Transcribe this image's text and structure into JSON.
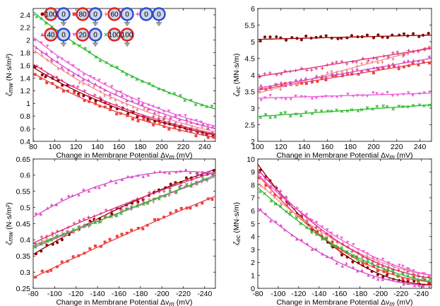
{
  "colors": {
    "c100": "#8b0000",
    "c80": "#ee4040",
    "c60": "#f39090",
    "c0": "#dd2a78",
    "c40": "#d94cc6",
    "c20": "#ef60d8",
    "c100b": "#2eb82e"
  },
  "legend": [
    {
      "key": "c100",
      "marker": "circle",
      "left": "100",
      "right": "0"
    },
    {
      "key": "c80",
      "marker": "square",
      "left": "80",
      "right": "0"
    },
    {
      "key": "c60",
      "marker": "diamond",
      "left": "60",
      "right": "0"
    },
    {
      "key": "c0",
      "marker": "plus",
      "left": "0",
      "right": "0"
    },
    {
      "key": "c40",
      "marker": "triangle-up",
      "left": "40",
      "right": "0"
    },
    {
      "key": "c20",
      "marker": "triangle-down",
      "left": "20",
      "right": "0"
    },
    {
      "key": "c100b",
      "marker": "x",
      "left": "100",
      "right": "100"
    }
  ],
  "chart_data": [
    {
      "id": "tl",
      "type": "scatter",
      "title": "",
      "ylabel_main": "ζ",
      "ylabel_sub": "mw",
      "ylabel_unit": "(N·s/m²)",
      "xlabel": "Change in Membrane Potential Δv",
      "xlabel_sub": "m",
      "xlabel_unit": "(mV)",
      "xlim": [
        80,
        250
      ],
      "ylim": [
        0.4,
        2.5
      ],
      "xticks": [
        80,
        100,
        120,
        140,
        160,
        180,
        200,
        220,
        240
      ],
      "xtick_labels": [
        "80",
        "100",
        "120",
        "140",
        "160",
        "180",
        "200",
        "220",
        "240"
      ],
      "yticks": [
        0.4,
        0.6,
        0.8,
        1.0,
        1.2,
        1.4,
        1.6,
        1.8,
        2.0,
        2.2,
        2.4
      ],
      "ytick_labels": [
        "0.4",
        "0.6",
        "0.8",
        "1",
        "1.2",
        "1.4",
        "1.6",
        "1.8",
        "2",
        "2.2",
        "2.4"
      ],
      "has_legend": true,
      "series": [
        {
          "key": "c100",
          "marker": "circle",
          "fit": {
            "type": "exp",
            "x0": 80,
            "x1": 250,
            "y0": 1.57,
            "y1": 0.5
          }
        },
        {
          "key": "c80",
          "marker": "square",
          "fit": {
            "type": "exp",
            "x0": 80,
            "x1": 250,
            "y0": 1.48,
            "y1": 0.46
          }
        },
        {
          "key": "c60",
          "marker": "diamond",
          "fit": {
            "type": "exp",
            "x0": 80,
            "x1": 250,
            "y0": 1.85,
            "y1": 0.55
          }
        },
        {
          "key": "c0",
          "marker": "plus",
          "fit": {
            "type": "exp",
            "x0": 80,
            "x1": 250,
            "y0": 1.62,
            "y1": 0.52
          }
        },
        {
          "key": "c40",
          "marker": "triangle-up",
          "fit": {
            "type": "exp",
            "x0": 80,
            "x1": 250,
            "y0": 1.92,
            "y1": 0.6
          }
        },
        {
          "key": "c20",
          "marker": "triangle-down",
          "fit": {
            "type": "exp",
            "x0": 80,
            "x1": 250,
            "y0": 2.05,
            "y1": 0.64
          }
        },
        {
          "key": "c100b",
          "marker": "x",
          "fit": {
            "type": "exp",
            "x0": 80,
            "x1": 250,
            "y0": 2.45,
            "y1": 0.91
          }
        }
      ]
    },
    {
      "id": "tr",
      "type": "scatter",
      "title": "",
      "ylabel_main": "ζ",
      "ylabel_sub": "ec",
      "ylabel_unit": "(MN·s/m)",
      "xlabel": "Change in Membrane Potential Δv",
      "xlabel_sub": "m",
      "xlabel_unit": "(mV)",
      "xlim": [
        100,
        250
      ],
      "ylim": [
        2.0,
        6.0
      ],
      "xticks": [
        100,
        120,
        140,
        160,
        180,
        200,
        220,
        240
      ],
      "xtick_labels": [
        "100",
        "120",
        "140",
        "160",
        "180",
        "200",
        "220",
        "240"
      ],
      "yticks": [
        2.0,
        2.5,
        3.0,
        3.5,
        4.0,
        4.5,
        5.0,
        5.5,
        6.0
      ],
      "ytick_labels": [
        "2",
        "2.5",
        "3",
        "3.5",
        "4",
        "4.5",
        "5",
        "5.5",
        "6"
      ],
      "has_legend": false,
      "series": [
        {
          "key": "c100",
          "marker": "circle",
          "fit": {
            "type": "lin",
            "x0": 100,
            "x1": 250,
            "y0": 5.07,
            "y1": 5.2
          }
        },
        {
          "key": "c80",
          "marker": "square",
          "fit": {
            "type": "lin",
            "x0": 100,
            "x1": 250,
            "y0": 3.55,
            "y1": 4.4
          }
        },
        {
          "key": "c60",
          "marker": "diamond",
          "fit": {
            "type": "lin",
            "x0": 100,
            "x1": 250,
            "y0": 3.45,
            "y1": 4.85
          }
        },
        {
          "key": "c0",
          "marker": "plus",
          "fit": {
            "type": "lin",
            "x0": 100,
            "x1": 250,
            "y0": 3.95,
            "y1": 4.8
          }
        },
        {
          "key": "c40",
          "marker": "triangle-up",
          "fit": {
            "type": "lin",
            "x0": 100,
            "x1": 250,
            "y0": 3.6,
            "y1": 4.5
          }
        },
        {
          "key": "c20",
          "marker": "triangle-down",
          "fit": {
            "type": "lin",
            "x0": 100,
            "x1": 250,
            "y0": 3.3,
            "y1": 3.45
          }
        },
        {
          "key": "c100b",
          "marker": "x",
          "fit": {
            "type": "lin",
            "x0": 100,
            "x1": 250,
            "y0": 2.75,
            "y1": 3.1
          }
        }
      ]
    },
    {
      "id": "bl",
      "type": "scatter",
      "title": "",
      "ylabel_main": "ζ",
      "ylabel_sub": "mw",
      "ylabel_unit": "(N·s/m²)",
      "xlabel": "Change in Membrane Potential Δv",
      "xlabel_sub": "m",
      "xlabel_unit": "(mV)",
      "xlim": [
        -80,
        -250
      ],
      "ylim": [
        0.25,
        0.65
      ],
      "xticks": [
        -80,
        -100,
        -120,
        -140,
        -160,
        -180,
        -200,
        -220,
        -240
      ],
      "xtick_labels": [
        "-80",
        "-100",
        "-120",
        "-140",
        "-160",
        "-180",
        "-200",
        "-220",
        "-240"
      ],
      "yticks": [
        0.25,
        0.3,
        0.35,
        0.4,
        0.45,
        0.5,
        0.55,
        0.6,
        0.65
      ],
      "ytick_labels": [
        "0.25",
        "0.3",
        "0.35",
        "0.4",
        "0.45",
        "0.5",
        "0.55",
        "0.6",
        "0.65"
      ],
      "has_legend": false,
      "series": [
        {
          "key": "c100",
          "marker": "circle",
          "fit": {
            "type": "quad",
            "x0": -80,
            "x1": -250,
            "y0": 0.355,
            "y1": 0.618,
            "ym": 0.505
          }
        },
        {
          "key": "c80",
          "marker": "square",
          "fit": {
            "type": "quad",
            "x0": -80,
            "x1": -250,
            "y0": 0.283,
            "y1": 0.535,
            "ym": 0.415
          }
        },
        {
          "key": "c60",
          "marker": "diamond",
          "fit": {
            "type": "quad",
            "x0": -80,
            "x1": -250,
            "y0": 0.385,
            "y1": 0.6,
            "ym": 0.488
          }
        },
        {
          "key": "c0",
          "marker": "plus",
          "fit": {
            "type": "quad",
            "x0": -80,
            "x1": -250,
            "y0": 0.39,
            "y1": 0.61,
            "ym": 0.51
          }
        },
        {
          "key": "c40",
          "marker": "triangle-up",
          "fit": {
            "type": "quad",
            "x0": -80,
            "x1": -250,
            "y0": 0.47,
            "y1": 0.605,
            "ym": 0.59
          }
        },
        {
          "key": "c20",
          "marker": "triangle-down",
          "fit": {
            "type": "quad",
            "x0": -80,
            "x1": -250,
            "y0": 0.375,
            "y1": 0.595,
            "ym": 0.49
          }
        },
        {
          "key": "c100b",
          "marker": "x",
          "fit": {
            "type": "quad",
            "x0": -80,
            "x1": -250,
            "y0": 0.38,
            "y1": 0.6,
            "ym": 0.49
          }
        }
      ]
    },
    {
      "id": "br",
      "type": "scatter",
      "title": "",
      "ylabel_main": "ζ",
      "ylabel_sub": "ec",
      "ylabel_unit": "(MN·s/m)",
      "xlabel": "Change in Membrane Potential Δv",
      "xlabel_sub": "m",
      "xlabel_unit": "(mV)",
      "xlim": [
        -80,
        -250
      ],
      "ylim": [
        0,
        10
      ],
      "xticks": [
        -80,
        -100,
        -120,
        -140,
        -160,
        -180,
        -200,
        -220,
        -240
      ],
      "xtick_labels": [
        "-80",
        "-100",
        "-120",
        "-140",
        "-160",
        "-180",
        "-200",
        "-220",
        "-240"
      ],
      "yticks": [
        0,
        1,
        2,
        3,
        4,
        5,
        6,
        7,
        8,
        9,
        10
      ],
      "ytick_labels": [
        "0",
        "1",
        "2",
        "3",
        "4",
        "5",
        "6",
        "7",
        "8",
        "9",
        "10"
      ],
      "has_legend": false,
      "series": [
        {
          "key": "c100",
          "marker": "circle",
          "fit": {
            "type": "quad",
            "x0": -80,
            "x1": -250,
            "y0": 9.6,
            "y1": 0.3,
            "ym": 2.6
          }
        },
        {
          "key": "c80",
          "marker": "square",
          "fit": {
            "type": "quad",
            "x0": -80,
            "x1": -250,
            "y0": 8.8,
            "y1": 0.5,
            "ym": 2.8
          }
        },
        {
          "key": "c60",
          "marker": "diamond",
          "fit": {
            "type": "quad",
            "x0": -80,
            "x1": -250,
            "y0": 8.2,
            "y1": 1.0,
            "ym": 3.3
          }
        },
        {
          "key": "c0",
          "marker": "plus",
          "fit": {
            "type": "quad",
            "x0": -80,
            "x1": -250,
            "y0": 9.2,
            "y1": 0.8,
            "ym": 3.3
          }
        },
        {
          "key": "c40",
          "marker": "triangle-up",
          "fit": {
            "type": "quad",
            "x0": -80,
            "x1": -250,
            "y0": 6.2,
            "y1": 0.2,
            "ym": 1.8
          }
        },
        {
          "key": "c20",
          "marker": "triangle-down",
          "fit": {
            "type": "quad",
            "x0": -80,
            "x1": -250,
            "y0": 8.8,
            "y1": 1.0,
            "ym": 3.6
          }
        },
        {
          "key": "c100b",
          "marker": "x",
          "fit": {
            "type": "quad",
            "x0": -80,
            "x1": -250,
            "y0": 7.8,
            "y1": 0.5,
            "ym": 2.9
          }
        }
      ]
    }
  ]
}
